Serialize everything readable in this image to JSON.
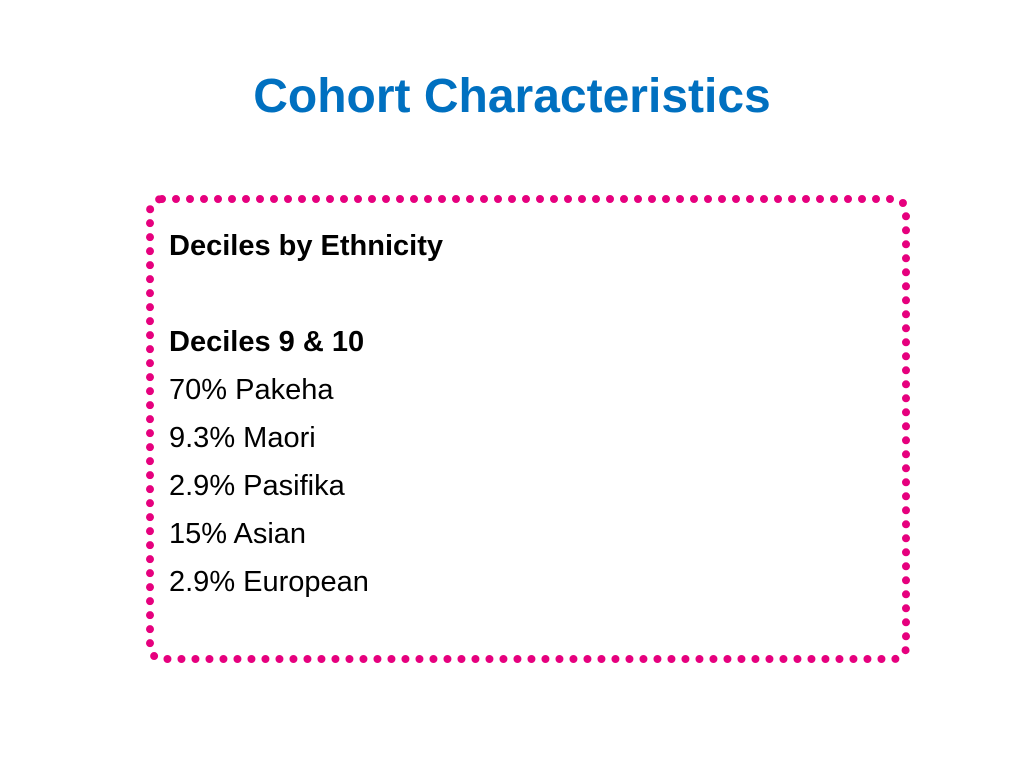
{
  "slide": {
    "title": "Cohort Characteristics"
  },
  "box": {
    "heading": "Deciles by Ethnicity",
    "subheading": "Deciles 9 & 10",
    "items": [
      "70% Pakeha",
      "9.3% Maori",
      "2.9% Pasifika",
      "15% Asian",
      "2.9% European"
    ]
  },
  "colors": {
    "title": "#0070C0",
    "dotted_border": "#E6007E",
    "text": "#000000"
  }
}
